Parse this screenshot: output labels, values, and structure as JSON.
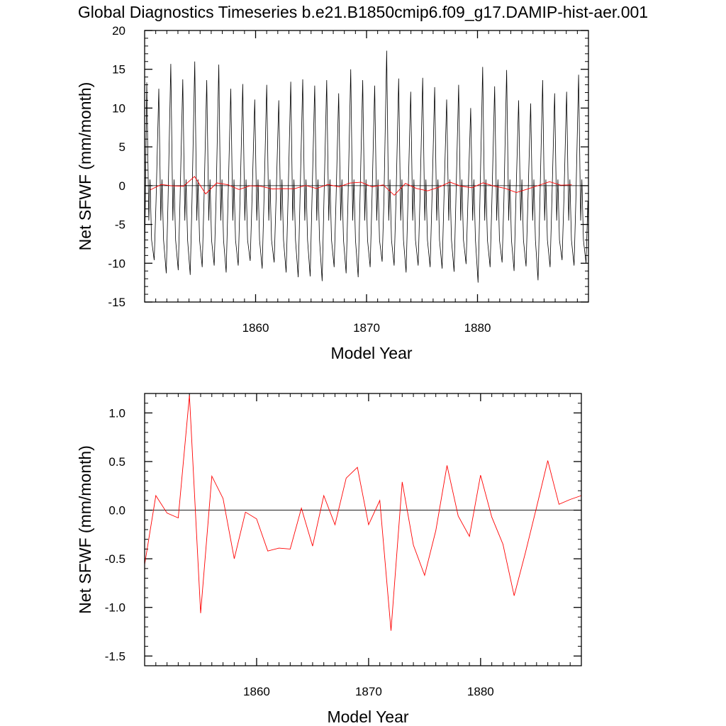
{
  "title": "Global Diagnostics Timeseries b.e21.B1850cmip6.f09_g17.DAMIP-hist-aer.001",
  "colors": {
    "monthly": "#000000",
    "annual": "#ff0000",
    "zero_line": "#000000"
  },
  "chart_data": [
    {
      "type": "line",
      "xlabel": "Model Year",
      "ylabel": "Net SFWF (mm/month)",
      "xlim": [
        1850,
        1890
      ],
      "ylim": [
        -15,
        20
      ],
      "x_ticks": [
        1860,
        1870,
        1880
      ],
      "x_tick_labels": [
        "1860",
        "1870",
        "1880"
      ],
      "y_ticks": [
        20,
        15,
        10,
        5,
        0,
        -5,
        -10,
        -15
      ],
      "y_tick_labels": [
        "20",
        "15",
        "10",
        "5",
        "0",
        "-5",
        "-10",
        "-15"
      ],
      "reference_line": 0,
      "series": [
        {
          "style": "monthly",
          "peaks": [
            13.3,
            12.5,
            15.7,
            13.7,
            16.0,
            13.6,
            15.6,
            12.5,
            13.1,
            11.1,
            13.0,
            11.0,
            13.4,
            13.7,
            12.9,
            13.6,
            11.9,
            15.0,
            13.6,
            12.9,
            17.4,
            13.8,
            12.1,
            13.9,
            12.7,
            11.1,
            13.0,
            10.0,
            15.3,
            12.8,
            14.9,
            11.0,
            10.6,
            13.6,
            11.9,
            12.1,
            14.3
          ],
          "troughs": [
            -9.6,
            -11.3,
            -10.9,
            -11.5,
            -10.5,
            -10.3,
            -11.2,
            -10.3,
            -9.7,
            -10.7,
            -9.9,
            -11.2,
            -11.8,
            -11.7,
            -12.3,
            -10.5,
            -11.3,
            -11.8,
            -10.5,
            -9.8,
            -10.3,
            -11.2,
            -10.3,
            -10.5,
            -10.7,
            -11.1,
            -10.1,
            -12.5,
            -10.5,
            -9.9,
            -11.0,
            -10.4,
            -12.2,
            -10.5,
            -9.6,
            -10.3,
            -10.0
          ],
          "start_value": -9.5,
          "end_value": -5.0
        },
        {
          "style": "annual",
          "x": [
            1850.5,
            1851.5,
            1852.5,
            1853.5,
            1854.5,
            1855.5,
            1856.5,
            1857.5,
            1858.5,
            1859.5,
            1860.5,
            1861.5,
            1862.5,
            1863.5,
            1864.5,
            1865.5,
            1866.5,
            1867.5,
            1868.5,
            1869.5,
            1870.5,
            1871.5,
            1872.5,
            1873.5,
            1874.5,
            1875.5,
            1876.5,
            1877.5,
            1878.5,
            1879.5,
            1880.5,
            1881.5,
            1882.5,
            1883.5,
            1884.5,
            1885.5,
            1886.5,
            1887.5,
            1888.5
          ],
          "y": [
            -0.55,
            0.15,
            -0.03,
            -0.08,
            1.18,
            -1.06,
            0.35,
            0.12,
            -0.5,
            -0.02,
            -0.09,
            -0.42,
            -0.39,
            -0.4,
            0.02,
            -0.37,
            0.15,
            -0.15,
            0.33,
            0.44,
            -0.15,
            0.1,
            -1.24,
            0.29,
            -0.36,
            -0.67,
            -0.21,
            0.46,
            -0.06,
            -0.27,
            0.36,
            -0.07,
            -0.35,
            -0.88,
            -0.44,
            0.03,
            0.51,
            0.06,
            0.11
          ]
        }
      ]
    },
    {
      "type": "line",
      "xlabel": "Model Year",
      "ylabel": "Net SFWF (mm/month)",
      "xlim": [
        1850,
        1889
      ],
      "ylim": [
        -1.6,
        1.2
      ],
      "x_ticks": [
        1860,
        1870,
        1880
      ],
      "x_tick_labels": [
        "1860",
        "1870",
        "1880"
      ],
      "y_ticks": [
        1.0,
        0.5,
        0.0,
        -0.5,
        -1.0,
        -1.5
      ],
      "y_tick_labels": [
        "1.0",
        "0.5",
        "0.0",
        "-0.5",
        "-1.0",
        "-1.5"
      ],
      "reference_line": 0,
      "series": [
        {
          "style": "annual",
          "x": [
            1850,
            1851,
            1852,
            1853,
            1854,
            1855,
            1856,
            1857,
            1858,
            1859,
            1860,
            1861,
            1862,
            1863,
            1864,
            1865,
            1866,
            1867,
            1868,
            1869,
            1870,
            1871,
            1872,
            1873,
            1874,
            1875,
            1876,
            1877,
            1878,
            1879,
            1880,
            1881,
            1882,
            1883,
            1884,
            1885,
            1886,
            1887,
            1888,
            1889
          ],
          "y": [
            -0.56,
            0.15,
            -0.03,
            -0.08,
            1.18,
            -1.06,
            0.35,
            0.12,
            -0.5,
            -0.02,
            -0.09,
            -0.42,
            -0.39,
            -0.4,
            0.02,
            -0.37,
            0.15,
            -0.15,
            0.33,
            0.44,
            -0.15,
            0.1,
            -1.24,
            0.29,
            -0.36,
            -0.67,
            -0.21,
            0.46,
            -0.06,
            -0.27,
            0.36,
            -0.07,
            -0.35,
            -0.88,
            -0.44,
            0.03,
            0.51,
            0.06,
            0.11,
            0.15
          ]
        }
      ]
    }
  ]
}
